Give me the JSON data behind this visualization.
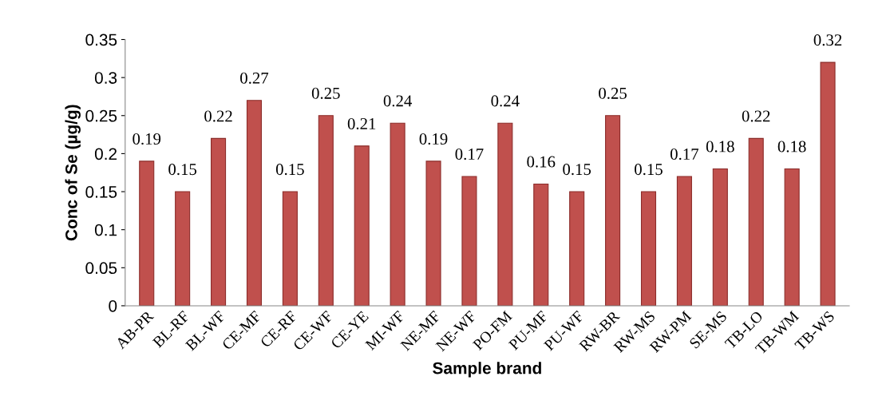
{
  "chart_data": {
    "type": "bar",
    "xlabel": "Sample brand",
    "ylabel": "Conc of Se (µg/g)",
    "categories": [
      "AB-PR",
      "BL-RF",
      "BL-WF",
      "CE-MF",
      "CE-RF",
      "CE-WF",
      "CE-YE",
      "MI-WF",
      "NE-MF",
      "NE-WF",
      "PO-FM",
      "PU-MF",
      "PU-WF",
      "RW-BR",
      "RW-MS",
      "RW-PM",
      "SE-MS",
      "TB-LO",
      "TB-WM",
      "TB-WS"
    ],
    "values": [
      0.19,
      0.15,
      0.22,
      0.27,
      0.15,
      0.25,
      0.21,
      0.24,
      0.19,
      0.17,
      0.24,
      0.16,
      0.15,
      0.25,
      0.15,
      0.17,
      0.18,
      0.22,
      0.18,
      0.32
    ],
    "color": "#c0504d",
    "ylim": [
      0,
      0.35
    ],
    "yticks": [
      0,
      0.05,
      0.1,
      0.15,
      0.2,
      0.25,
      0.3,
      0.35
    ],
    "data_labels": true,
    "grid": false,
    "legend": false
  }
}
